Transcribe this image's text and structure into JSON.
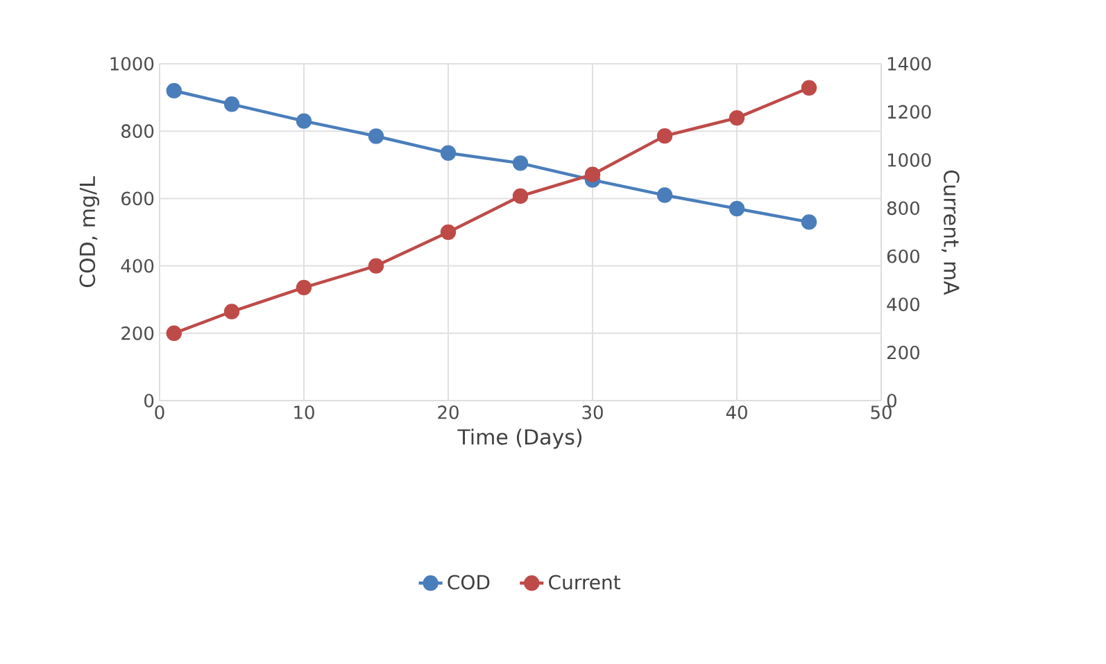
{
  "chart_data": {
    "type": "line",
    "xlabel": "Time (Days)",
    "ylabel": "COD, mg/L",
    "y2label": "Current, mA",
    "x": [
      1,
      5,
      10,
      15,
      20,
      25,
      30,
      35,
      40,
      45
    ],
    "series": [
      {
        "name": "COD",
        "color": "#4a7ebb",
        "values": [
          920,
          880,
          830,
          785,
          735,
          705,
          655,
          610,
          570,
          530
        ]
      },
      {
        "name": "Current",
        "color": "#be4b48",
        "axis": "y2",
        "values": [
          280,
          370,
          470,
          560,
          700,
          850,
          940,
          1100,
          1175,
          1300
        ]
      }
    ],
    "xlim": [
      0,
      50
    ],
    "xticks": [
      0,
      10,
      20,
      30,
      40,
      50
    ],
    "ylim": [
      0,
      1000
    ],
    "yticks": [
      0,
      200,
      400,
      600,
      800,
      1000
    ],
    "y2lim": [
      0,
      1400
    ],
    "y2ticks": [
      0,
      200,
      400,
      600,
      800,
      1000,
      1200,
      1400
    ],
    "grid": true,
    "legend": "bottom",
    "marker": "circle",
    "line_style": "solid"
  }
}
